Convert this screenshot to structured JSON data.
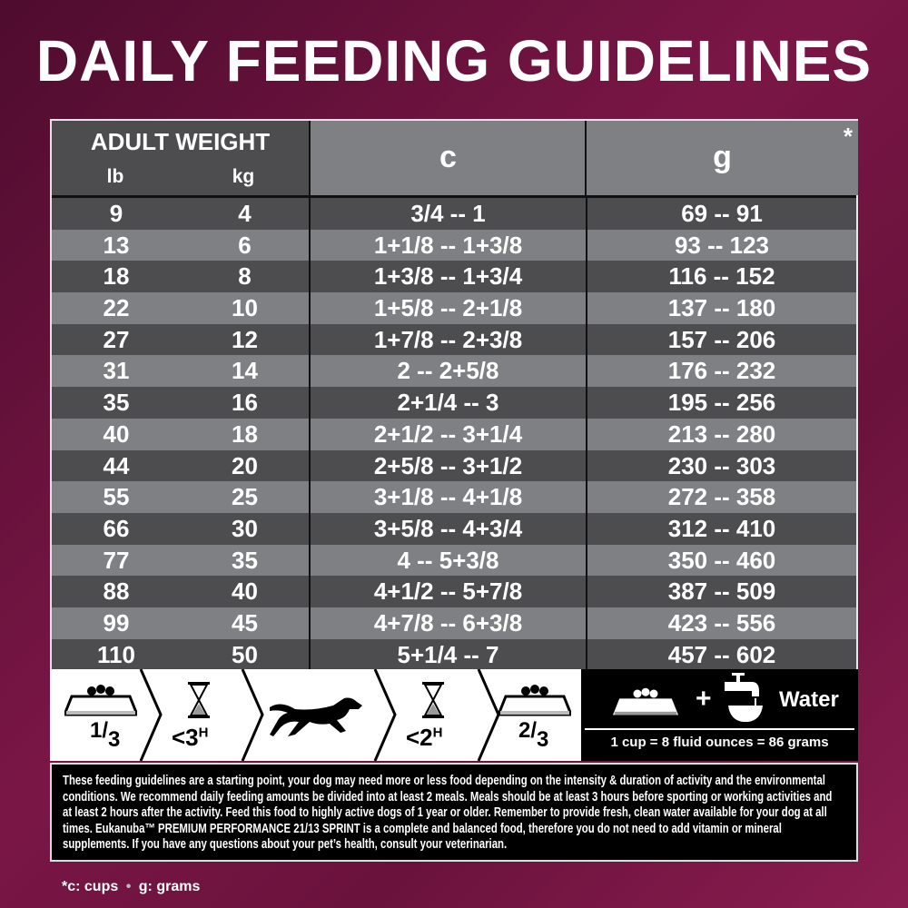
{
  "title": "DAILY FEEDING GUIDELINES",
  "table": {
    "weight_header": "ADULT WEIGHT",
    "lb_header": "lb",
    "kg_header": "kg",
    "cups_header": "c",
    "grams_header": "g",
    "asterisk": "*",
    "rows": [
      {
        "lb": "9",
        "kg": "4",
        "c": "3/4 -- 1",
        "g": "69 -- 91"
      },
      {
        "lb": "13",
        "kg": "6",
        "c": "1+1/8 -- 1+3/8",
        "g": "93 -- 123"
      },
      {
        "lb": "18",
        "kg": "8",
        "c": "1+3/8 -- 1+3/4",
        "g": "116 -- 152"
      },
      {
        "lb": "22",
        "kg": "10",
        "c": "1+5/8 -- 2+1/8",
        "g": "137 -- 180"
      },
      {
        "lb": "27",
        "kg": "12",
        "c": "1+7/8 -- 2+3/8",
        "g": "157 -- 206"
      },
      {
        "lb": "31",
        "kg": "14",
        "c": "2 -- 2+5/8",
        "g": "176 -- 232"
      },
      {
        "lb": "35",
        "kg": "16",
        "c": "2+1/4 -- 3",
        "g": "195 -- 256"
      },
      {
        "lb": "40",
        "kg": "18",
        "c": "2+1/2 -- 3+1/4",
        "g": "213 -- 280"
      },
      {
        "lb": "44",
        "kg": "20",
        "c": "2+5/8 -- 3+1/2",
        "g": "230 -- 303"
      },
      {
        "lb": "55",
        "kg": "25",
        "c": "3+1/8 -- 4+1/8",
        "g": "272 -- 358"
      },
      {
        "lb": "66",
        "kg": "30",
        "c": "3+5/8 -- 4+3/4",
        "g": "312 -- 410"
      },
      {
        "lb": "77",
        "kg": "35",
        "c": "4 -- 5+3/8",
        "g": "350 -- 460"
      },
      {
        "lb": "88",
        "kg": "40",
        "c": "4+1/2 -- 5+7/8",
        "g": "387 -- 509"
      },
      {
        "lb": "99",
        "kg": "45",
        "c": "4+7/8 -- 6+3/8",
        "g": "423 -- 556"
      },
      {
        "lb": "110",
        "kg": "50",
        "c": "5+1/4 -- 7",
        "g": "457 -- 602"
      }
    ]
  },
  "steps": {
    "first_portion_num": "1",
    "first_portion_den": "3",
    "before_wait": "<3",
    "before_unit": "H",
    "after_wait": "<2",
    "after_unit": "H",
    "second_portion_num": "2",
    "second_portion_den": "3",
    "icons": [
      "food-bowl-icon",
      "hourglass-icon",
      "running-dog-icon",
      "hourglass-icon",
      "food-bowl-icon"
    ]
  },
  "water_panel": {
    "plus": "+",
    "water_label": "Water",
    "conversion": "1 cup = 8 fluid ounces = 86 grams"
  },
  "description": "These feeding guidelines are a starting point, your dog may need more or less food depending on the intensity & duration of activity and the environmental conditions. We recommend daily feeding amounts be divided into at least 2 meals. Meals should be at least 3 hours before sporting or working activities and at least 2 hours after the activity. Feed this food to highly active dogs of 1 year or older. Remember to provide fresh, clean water available for your dog at all times. Eukanuba™ PREMIUM PERFORMANCE 21/13 SPRINT is a complete and balanced food, therefore you do not need to add vitamin or mineral supplements. If you have any questions about your pet’s health, consult your veterinarian.",
  "footnote": {
    "cups": "*c: cups",
    "bullet": "•",
    "grams": "g: grams"
  },
  "colors": {
    "background": "#6a123c",
    "dark_row": "#4d4d4f",
    "light_row": "#7f8083"
  }
}
